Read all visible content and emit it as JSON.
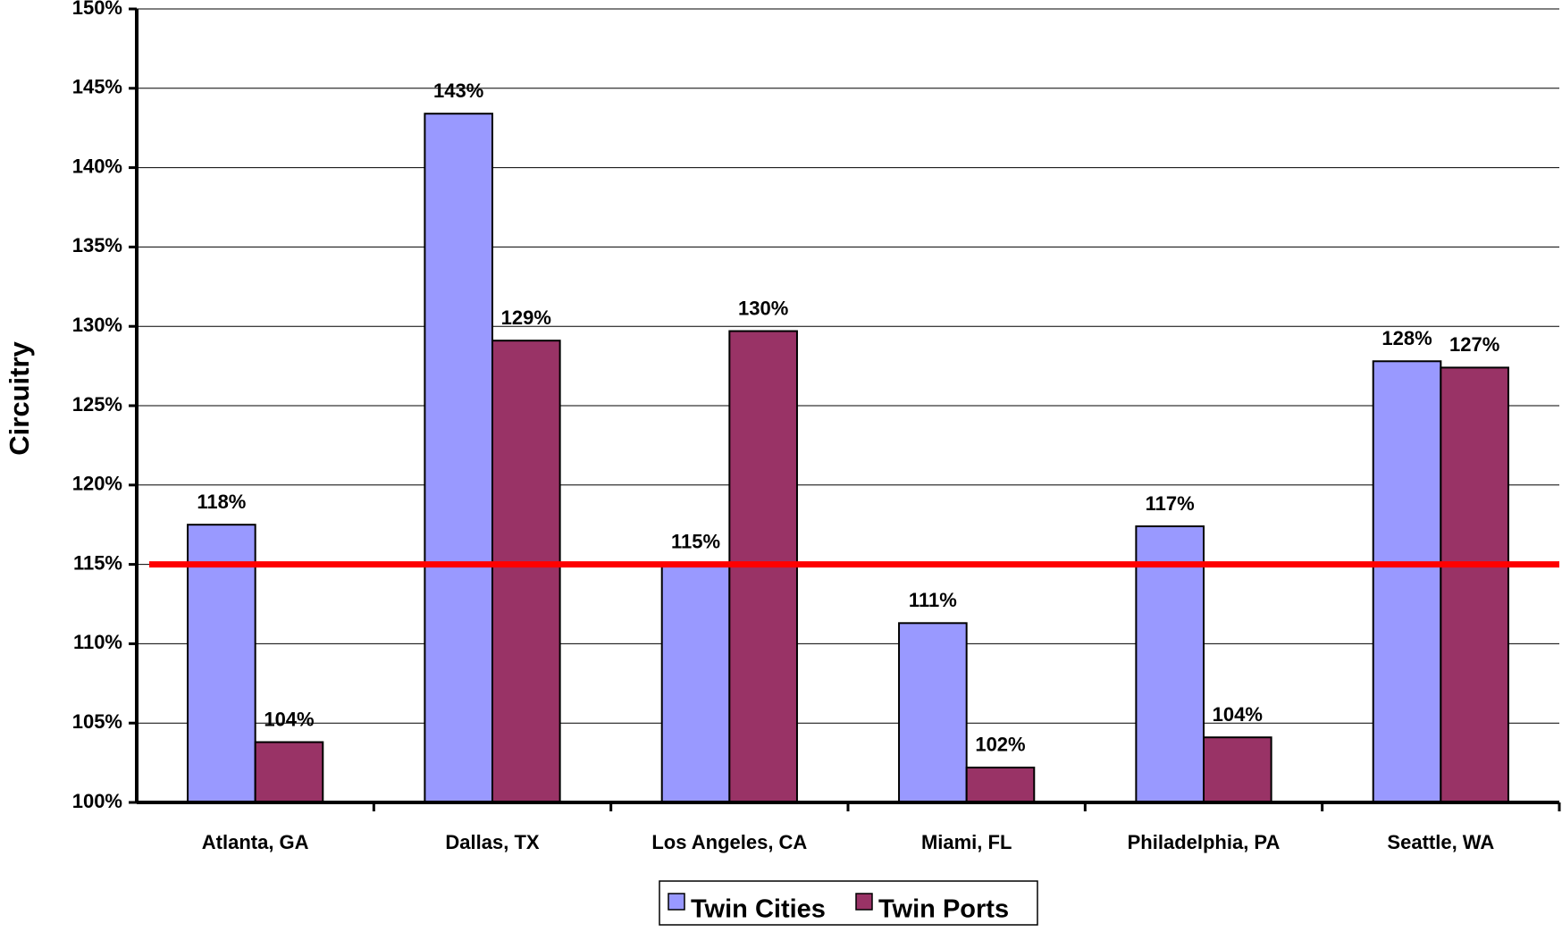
{
  "chart_data": {
    "type": "bar",
    "ylabel": "Circuitry",
    "categories": [
      "Atlanta, GA",
      "Dallas, TX",
      "Los Angeles, CA",
      "Miami, FL",
      "Philadelphia, PA",
      "Seattle, WA"
    ],
    "series": [
      {
        "name": "Twin Cities",
        "color": "#9999ff",
        "values": [
          117.5,
          143.4,
          115.0,
          111.3,
          117.4,
          127.8
        ],
        "value_labels": [
          "118%",
          "143%",
          "115%",
          "111%",
          "117%",
          "128%"
        ]
      },
      {
        "name": "Twin Ports",
        "color": "#993366",
        "values": [
          103.8,
          129.1,
          129.7,
          102.2,
          104.1,
          127.4
        ],
        "value_labels": [
          "104%",
          "129%",
          "130%",
          "102%",
          "104%",
          "127%"
        ]
      }
    ],
    "reference_line": {
      "value": 115,
      "color": "#ff0000"
    },
    "ylim": [
      100,
      150
    ],
    "yticks": [
      {
        "value": 100,
        "label": "100%"
      },
      {
        "value": 105,
        "label": "105%"
      },
      {
        "value": 110,
        "label": "110%"
      },
      {
        "value": 115,
        "label": "115%"
      },
      {
        "value": 120,
        "label": "120%"
      },
      {
        "value": 125,
        "label": "125%"
      },
      {
        "value": 130,
        "label": "130%"
      },
      {
        "value": 135,
        "label": "135%"
      },
      {
        "value": 140,
        "label": "140%"
      },
      {
        "value": 145,
        "label": "145%"
      },
      {
        "value": 150,
        "label": "150%"
      }
    ],
    "grid": true,
    "legend": "bottom"
  }
}
